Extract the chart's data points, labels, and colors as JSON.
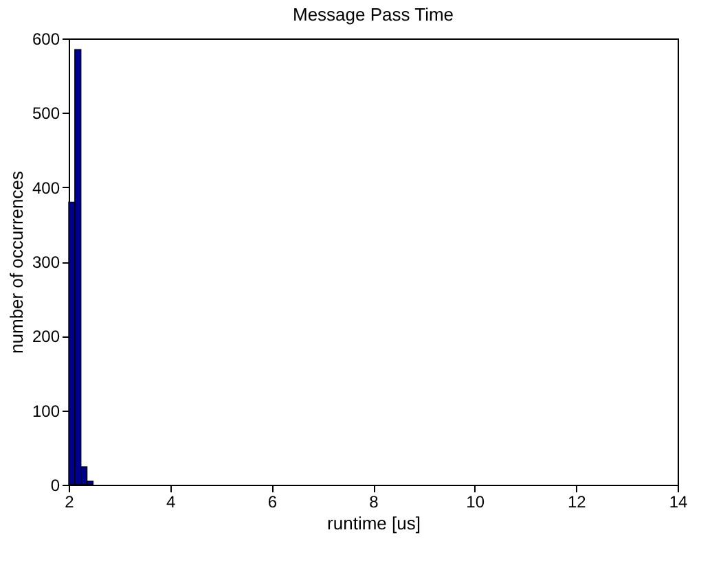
{
  "chart_data": {
    "type": "histogram",
    "title": "Message Pass Time",
    "xlabel": "runtime [us]",
    "ylabel": "number of occurrences",
    "bins": [
      2.0,
      2.12,
      2.24,
      2.36,
      2.48
    ],
    "values": [
      380,
      585,
      24,
      5
    ],
    "color": "#00008f",
    "xlim": [
      2,
      14
    ],
    "xticks": [
      2,
      4,
      6,
      8,
      10,
      12,
      14
    ],
    "ylim": [
      0,
      600
    ],
    "yticks": [
      0,
      100,
      200,
      300,
      400,
      500,
      600
    ],
    "grid": false
  }
}
